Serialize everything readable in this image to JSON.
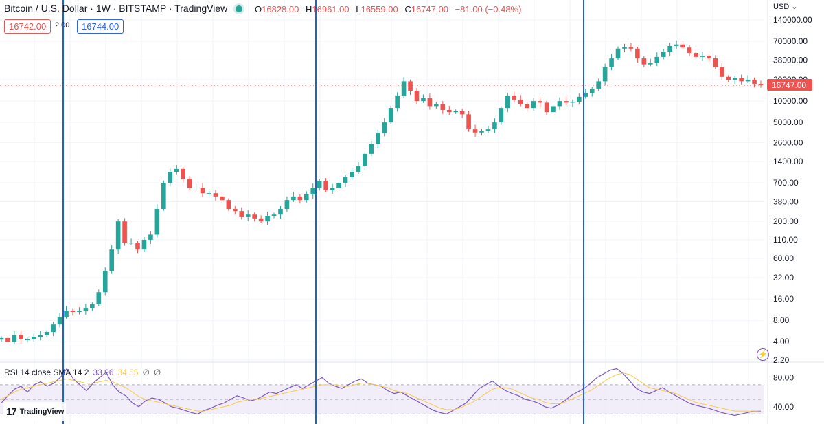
{
  "header": {
    "title": "Bitcoin / U.S. Dollar · 1W · BITSTAMP · TradingView",
    "open_key": "O",
    "open": "16828.00",
    "high_key": "H",
    "high": "16961.00",
    "low_key": "L",
    "low": "16559.00",
    "close_key": "C",
    "close": "16747.00",
    "change": "−81.00 (−0.48%)"
  },
  "trade": {
    "bid": "16742.00",
    "spread": "2.00",
    "ask": "16744.00"
  },
  "currency_selector": "USD",
  "rsi_legend": {
    "label": "RSI 14 close SMA 14 2",
    "rsi": "33.96",
    "sma": "34.55",
    "na1": "∅",
    "na2": "∅"
  },
  "logo": {
    "text": "TradingView",
    "mark": "17"
  },
  "colors": {
    "up": "#26a69a",
    "down": "#ef5350",
    "marker": "#1e5fe0",
    "rsi": "#7e57c2",
    "rsi_sma": "#f7c948",
    "rsi_band": "#ede7f6"
  },
  "chart_data": [
    {
      "type": "candlestick",
      "title": "Bitcoin / U.S. Dollar · 1W · BITSTAMP · TradingView",
      "y_scale": "log",
      "ylim": [
        2.2,
        140000
      ],
      "y_ticks": [
        "140000.00",
        "70000.00",
        "38000.00",
        "20000.00",
        "10000.00",
        "5000.00",
        "2600.00",
        "1400.00",
        "700.00",
        "380.00",
        "200.00",
        "110.00",
        "60.00",
        "32.00",
        "16.00",
        "8.00",
        "4.00",
        "2.20"
      ],
      "last_price_label": "16747.00",
      "last_price": 16747,
      "vertical_markers": 3,
      "series": [
        {
          "values": [
            4.5,
            4,
            5,
            4.3,
            4.3,
            4.7,
            5,
            5.5,
            7,
            9,
            11,
            10.5,
            11,
            12,
            13.5,
            20,
            40,
            80,
            200,
            100,
            100,
            80,
            110,
            130,
            300,
            700,
            1000,
            1100,
            800,
            600,
            600,
            500,
            500,
            450,
            400,
            300,
            280,
            230,
            250,
            220,
            200,
            240,
            250,
            300,
            400,
            450,
            400,
            480,
            600,
            750,
            550,
            600,
            700,
            850,
            1000,
            1200,
            1800,
            2500,
            3500,
            5000,
            8000,
            12000,
            19000,
            14000,
            10000,
            11000,
            8500,
            9000,
            7500,
            7000,
            7200,
            6500,
            4000,
            3600,
            3800,
            4000,
            5000,
            8000,
            12000,
            10500,
            9000,
            8000,
            10000,
            9500,
            7000,
            8500,
            10000,
            9500,
            9800,
            11500,
            13000,
            15000,
            19000,
            30000,
            40000,
            55000,
            58000,
            55000,
            40000,
            33000,
            35000,
            42000,
            50000,
            60000,
            63000,
            57000,
            48000,
            42000,
            43000,
            40000,
            30000,
            22000,
            20000,
            21000,
            19000,
            20000,
            17500,
            16700
          ]
        }
      ]
    },
    {
      "type": "line",
      "title": "RSI 14 close SMA 14 2",
      "y_ticks": [
        "80.00",
        "40.00"
      ],
      "bands": [
        30,
        70
      ],
      "series": [
        {
          "name": "RSI",
          "values": [
            45,
            55,
            64,
            68,
            60,
            70,
            74,
            68,
            72,
            80,
            92,
            78,
            70,
            62,
            72,
            80,
            87,
            70,
            60,
            55,
            45,
            40,
            48,
            52,
            50,
            45,
            40,
            38,
            35,
            32,
            30,
            35,
            38,
            42,
            45,
            50,
            55,
            52,
            48,
            50,
            55,
            60,
            58,
            62,
            66,
            70,
            65,
            70,
            75,
            80,
            72,
            68,
            65,
            70,
            75,
            78,
            72,
            70,
            68,
            62,
            58,
            60,
            55,
            50,
            45,
            40,
            35,
            32,
            30,
            35,
            40,
            45,
            55,
            65,
            70,
            75,
            68,
            62,
            58,
            55,
            50,
            48,
            45,
            40,
            38,
            42,
            48,
            55,
            60,
            65,
            72,
            80,
            85,
            90,
            92,
            85,
            75,
            65,
            60,
            58,
            62,
            66,
            60,
            55,
            50,
            45,
            42,
            40,
            38,
            35,
            32,
            30,
            28,
            30,
            32,
            34,
            34
          ]
        },
        {
          "name": "SMA",
          "values": [
            50,
            55,
            60,
            64,
            66,
            68,
            70,
            72,
            74,
            76,
            78,
            76,
            74,
            72,
            72,
            74,
            76,
            74,
            70,
            66,
            60,
            54,
            50,
            48,
            46,
            44,
            42,
            40,
            38,
            36,
            34,
            34,
            36,
            38,
            40,
            42,
            46,
            48,
            50,
            50,
            52,
            54,
            56,
            58,
            60,
            62,
            64,
            66,
            68,
            70,
            70,
            70,
            68,
            68,
            70,
            72,
            72,
            70,
            68,
            66,
            62,
            60,
            58,
            54,
            50,
            46,
            42,
            38,
            36,
            36,
            38,
            42,
            46,
            52,
            58,
            64,
            66,
            66,
            64,
            60,
            56,
            52,
            50,
            46,
            44,
            44,
            46,
            50,
            54,
            58,
            62,
            68,
            74,
            80,
            84,
            86,
            84,
            78,
            72,
            66,
            64,
            62,
            60,
            58,
            54,
            50,
            46,
            44,
            42,
            40,
            38,
            36,
            34,
            34,
            34,
            34,
            34.5
          ]
        }
      ]
    }
  ]
}
